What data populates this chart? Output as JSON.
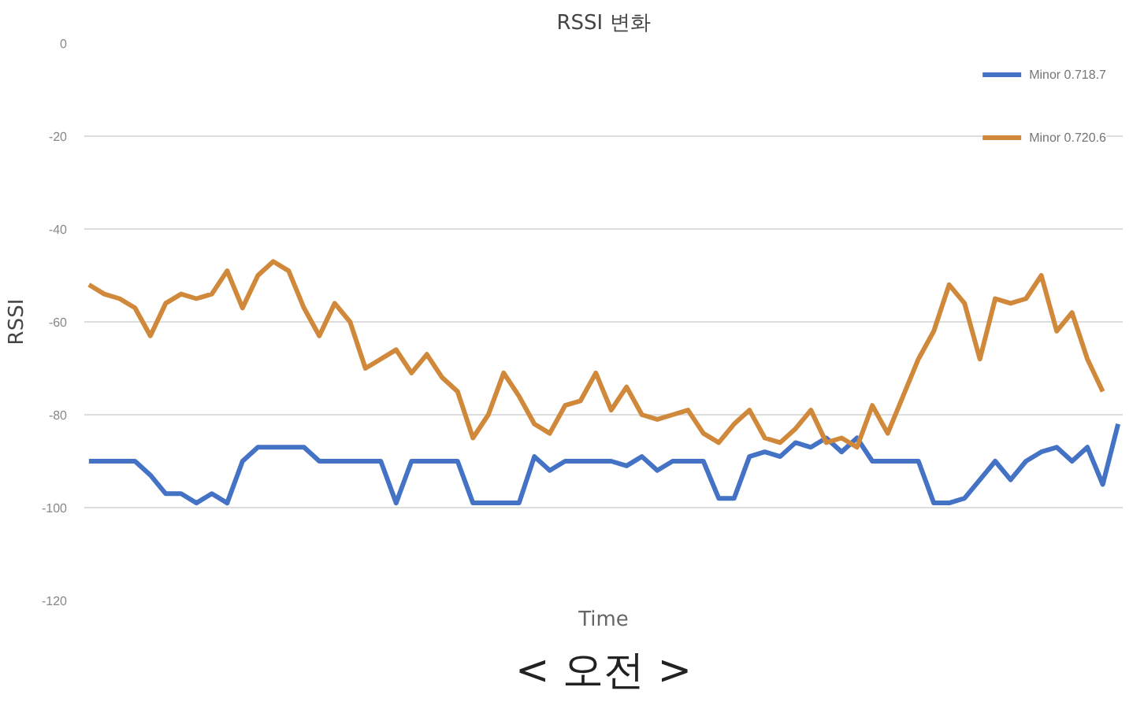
{
  "chart_data": {
    "type": "line",
    "title": "RSSI 변화",
    "xlabel": "Time",
    "ylabel": "RSSI",
    "annotations": [
      "< 오전 >"
    ],
    "categories": [
      null,
      null,
      null,
      null,
      null,
      null,
      null,
      null,
      null,
      null,
      null,
      null,
      null,
      null,
      null,
      null,
      null,
      null,
      null,
      null,
      null,
      null,
      null,
      null,
      null,
      null,
      null,
      null,
      null,
      null,
      null,
      null,
      null,
      null,
      null,
      null,
      null,
      null,
      null,
      null,
      null,
      null,
      null,
      null,
      null,
      null,
      null,
      null,
      null,
      null,
      null,
      null,
      null,
      null,
      null,
      null,
      null,
      null,
      null,
      null,
      null,
      null,
      null,
      null,
      null,
      null,
      null,
      null
    ],
    "series": [
      {
        "name": "Minor 0.718.7",
        "color": "#4472c4",
        "values": [
          -90,
          -90,
          -90,
          -90,
          -93,
          -97,
          -97,
          -99,
          -97,
          -99,
          -90,
          -87,
          -87,
          -87,
          -87,
          -90,
          -90,
          -90,
          -90,
          -90,
          -99,
          -90,
          -90,
          -90,
          -90,
          -99,
          -99,
          -99,
          -99,
          -89,
          -92,
          -90,
          -90,
          -90,
          -90,
          -91,
          -89,
          -92,
          -90,
          -90,
          -90,
          -98,
          -98,
          -89,
          -88,
          -89,
          -86,
          -87,
          -85,
          -88,
          -85,
          -90,
          -90,
          -90,
          -90,
          -99,
          -99,
          -98,
          -94,
          -90,
          -94,
          -90,
          -88,
          -87,
          -90,
          -87,
          -95,
          -82
        ]
      },
      {
        "name": "Minor 0.720.6",
        "color": "#d0893a",
        "values": [
          -52,
          -54,
          -55,
          -57,
          -63,
          -56,
          -54,
          -55,
          -54,
          -49,
          -57,
          -50,
          -47,
          -49,
          -57,
          -63,
          -56,
          -60,
          -70,
          -68,
          -66,
          -71,
          -67,
          -72,
          -75,
          -85,
          -80,
          -71,
          -76,
          -82,
          -84,
          -78,
          -77,
          -71,
          -79,
          -74,
          -80,
          -81,
          -80,
          -79,
          -84,
          -86,
          -82,
          -79,
          -85,
          -86,
          -83,
          -79,
          -86,
          -85,
          -87,
          -78,
          -84,
          -76,
          -68,
          -62,
          -52,
          -56,
          -68,
          -55,
          -56,
          -55,
          -50,
          -62,
          -58,
          -68,
          -75,
          null
        ]
      }
    ],
    "ylim": [
      -120,
      0
    ],
    "yticks": [
      0,
      -20,
      -40,
      -60,
      -80,
      -100,
      -120
    ],
    "grid": "y",
    "legend": "top right"
  }
}
